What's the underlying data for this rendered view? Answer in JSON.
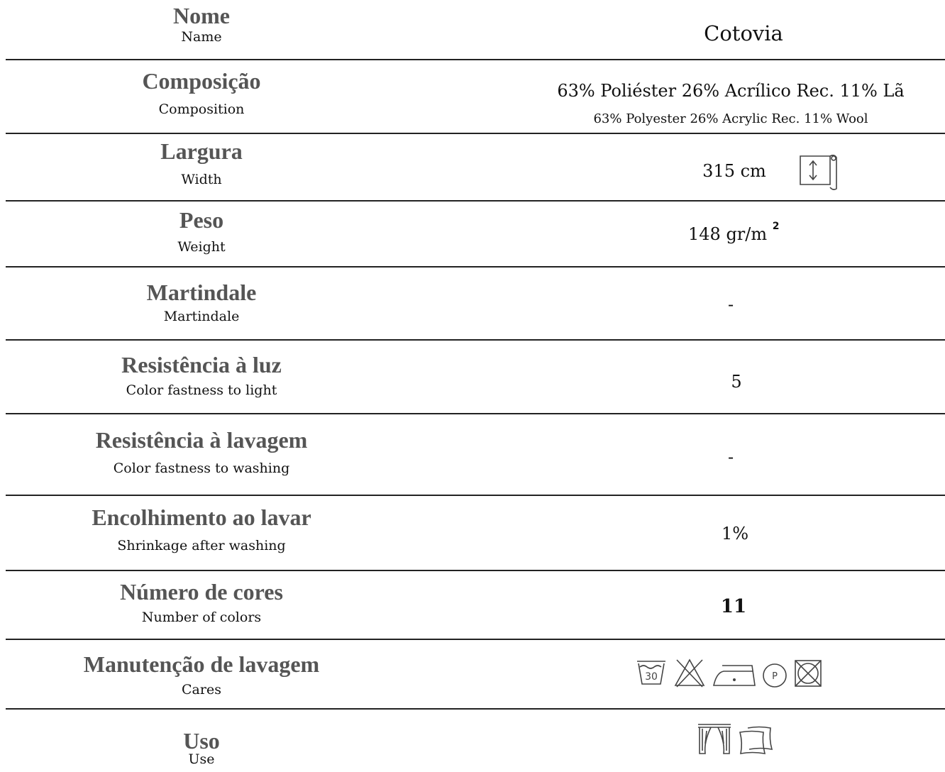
{
  "rows": [
    {
      "label_pt": "Nome",
      "label_en": "Name",
      "value": "Cotovia"
    },
    {
      "label_pt": "Composição",
      "label_en": "Composition",
      "value": "63% Poliéster 26% Acrílico Rec. 11% Lã",
      "value_en": "63% Polyester 26% Acrylic Rec. 11% Wool"
    },
    {
      "label_pt": "Largura",
      "label_en": "Width",
      "value": "315 cm",
      "icon": "fabric-roll-width-icon"
    },
    {
      "label_pt": "Peso",
      "label_en": "Weight",
      "value": "148 gr/m",
      "value_sup": "2"
    },
    {
      "label_pt": "Martindale",
      "label_en": "Martindale",
      "value": "-"
    },
    {
      "label_pt": "Resistência à luz",
      "label_en": "Color fastness to light",
      "value": "5"
    },
    {
      "label_pt": "Resistência à lavagem",
      "label_en": "Color fastness to washing",
      "value": "-"
    },
    {
      "label_pt": "Encolhimento ao lavar",
      "label_en": "Shrinkage after washing",
      "value": "1%"
    },
    {
      "label_pt": "Número de cores",
      "label_en": "Number of colors",
      "value": "11"
    },
    {
      "label_pt": "Manutenção de lavagem",
      "label_en": "Cares",
      "care_icons": [
        "wash-30-icon",
        "no-bleach-icon",
        "iron-low-icon",
        "dry-clean-p-icon",
        "no-tumble-dry-icon"
      ],
      "wash_temp": "30",
      "dry_clean_letter": "P"
    },
    {
      "label_pt": "Uso",
      "label_en": "Use",
      "use_icons": [
        "curtains-icon",
        "cushion-icon"
      ]
    }
  ]
}
